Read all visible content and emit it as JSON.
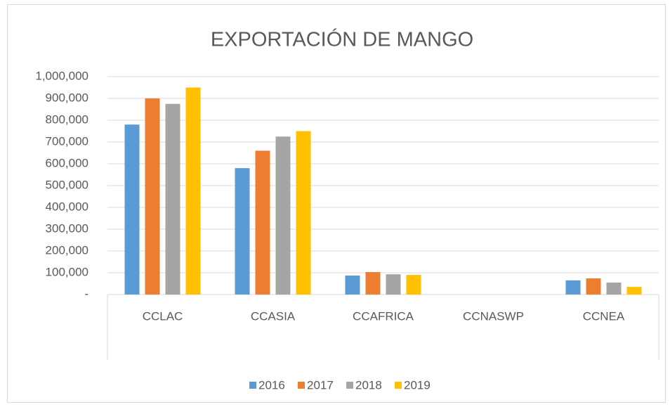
{
  "chart_data": {
    "type": "bar",
    "title": "EXPORTACIÓN DE MANGO",
    "categories": [
      "CCLAC",
      "CCASIA",
      "CCAFRICA",
      "CCNASWP",
      "CCNEA"
    ],
    "series": [
      {
        "name": "2016",
        "color": "#5b9bd5",
        "values": [
          780000,
          580000,
          87000,
          0,
          65000
        ]
      },
      {
        "name": "2017",
        "color": "#ed7d31",
        "values": [
          900000,
          660000,
          103000,
          0,
          74000
        ]
      },
      {
        "name": "2018",
        "color": "#a5a5a5",
        "values": [
          875000,
          725000,
          93000,
          0,
          55000
        ]
      },
      {
        "name": "2019",
        "color": "#ffc000",
        "values": [
          950000,
          750000,
          90000,
          0,
          35000
        ]
      }
    ],
    "ylim": [
      0,
      1000000
    ],
    "yticks": [
      {
        "value": 0,
        "label": "-"
      },
      {
        "value": 100000,
        "label": "100,000"
      },
      {
        "value": 200000,
        "label": "200,000"
      },
      {
        "value": 300000,
        "label": "300,000"
      },
      {
        "value": 400000,
        "label": "400,000"
      },
      {
        "value": 500000,
        "label": "500,000"
      },
      {
        "value": 600000,
        "label": "600,000"
      },
      {
        "value": 700000,
        "label": "700,000"
      },
      {
        "value": 800000,
        "label": "800,000"
      },
      {
        "value": 900000,
        "label": "900,000"
      },
      {
        "value": 1000000,
        "label": "1,000,000"
      }
    ],
    "grid": true,
    "legend": "bottom"
  }
}
